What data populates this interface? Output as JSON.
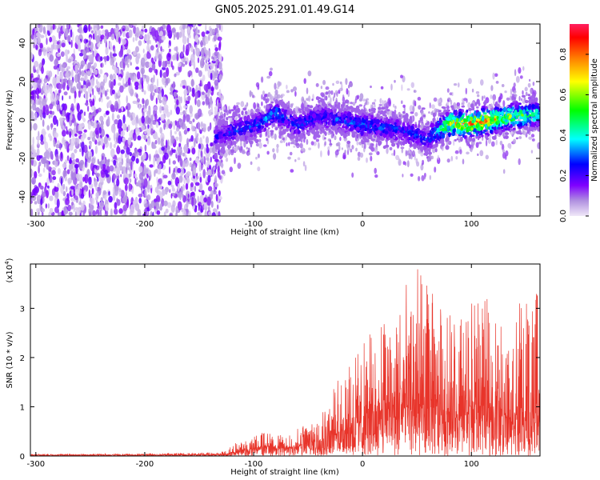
{
  "title": "GN05.2025.291.01.49.G14",
  "chart_data": [
    {
      "type": "heatmap",
      "xlabel": "Height of straight line (km)",
      "ylabel": "Frequency (Hz)",
      "xlim": [
        -305,
        163
      ],
      "ylim": [
        -50,
        50
      ],
      "xticks": [
        "-300",
        "-200",
        "-100",
        "0",
        "100"
      ],
      "xtick_values": [
        -300,
        -200,
        -100,
        0,
        100
      ],
      "yticks": [
        "40",
        "20",
        "0",
        "-20",
        "-40"
      ],
      "ytick_values": [
        40,
        20,
        0,
        -20,
        -40
      ],
      "colorbar": {
        "label": "Normalized spectral amplitude",
        "range": [
          0.0,
          0.95
        ],
        "ticks": [
          "0.0",
          "0.2",
          "0.4",
          "0.6",
          "0.8"
        ],
        "tick_values": [
          0.0,
          0.2,
          0.4,
          0.6,
          0.8
        ],
        "colors": [
          "#f0e8f8",
          "#7f00ff",
          "#0000ff",
          "#00ffff",
          "#00ff00",
          "#ffff00",
          "#ff8000",
          "#ff0000",
          "#ff2060"
        ]
      },
      "noise_region_x": [
        -305,
        -135
      ],
      "signal_ridge": {
        "x": [
          -135,
          -120,
          -100,
          -90,
          -80,
          -60,
          -40,
          -20,
          0,
          20,
          40,
          60,
          70,
          80,
          100,
          120,
          140,
          163
        ],
        "freq": [
          -9,
          -6,
          -3,
          0,
          4,
          -3,
          2,
          0,
          -3,
          -4,
          -6,
          -10,
          -5,
          -2,
          -2,
          0,
          2,
          3
        ],
        "amplitude": [
          0.25,
          0.3,
          0.3,
          0.35,
          0.35,
          0.3,
          0.3,
          0.3,
          0.35,
          0.3,
          0.3,
          0.3,
          0.45,
          0.7,
          0.85,
          0.75,
          0.6,
          0.5
        ]
      }
    },
    {
      "type": "line",
      "xlabel": "Height of straight line (km)",
      "ylabel": "SNR (10 * v/v)",
      "multiplier": "(x10^4)",
      "xlim": [
        -305,
        163
      ],
      "ylim": [
        0,
        3.9
      ],
      "xticks": [
        "-300",
        "-200",
        "-100",
        "0",
        "100"
      ],
      "xtick_values": [
        -300,
        -200,
        -100,
        0,
        100
      ],
      "yticks": [
        "0",
        "1",
        "2",
        "3"
      ],
      "ytick_values": [
        0,
        1,
        2,
        3
      ],
      "color": "#e8342a",
      "envelope": {
        "x": [
          -305,
          -200,
          -130,
          -110,
          -90,
          -70,
          -50,
          -30,
          -10,
          10,
          30,
          50,
          70,
          90,
          110,
          130,
          150,
          163
        ],
        "mean": [
          0.02,
          0.02,
          0.03,
          0.1,
          0.2,
          0.15,
          0.25,
          0.4,
          0.6,
          0.85,
          1.0,
          1.05,
          0.95,
          0.85,
          1.0,
          0.9,
          0.8,
          0.9
        ],
        "max": [
          0.04,
          0.05,
          0.08,
          0.35,
          0.5,
          0.4,
          0.7,
          1.3,
          2.0,
          2.6,
          3.2,
          3.9,
          3.1,
          2.9,
          3.3,
          2.8,
          3.4,
          3.3
        ]
      }
    }
  ]
}
